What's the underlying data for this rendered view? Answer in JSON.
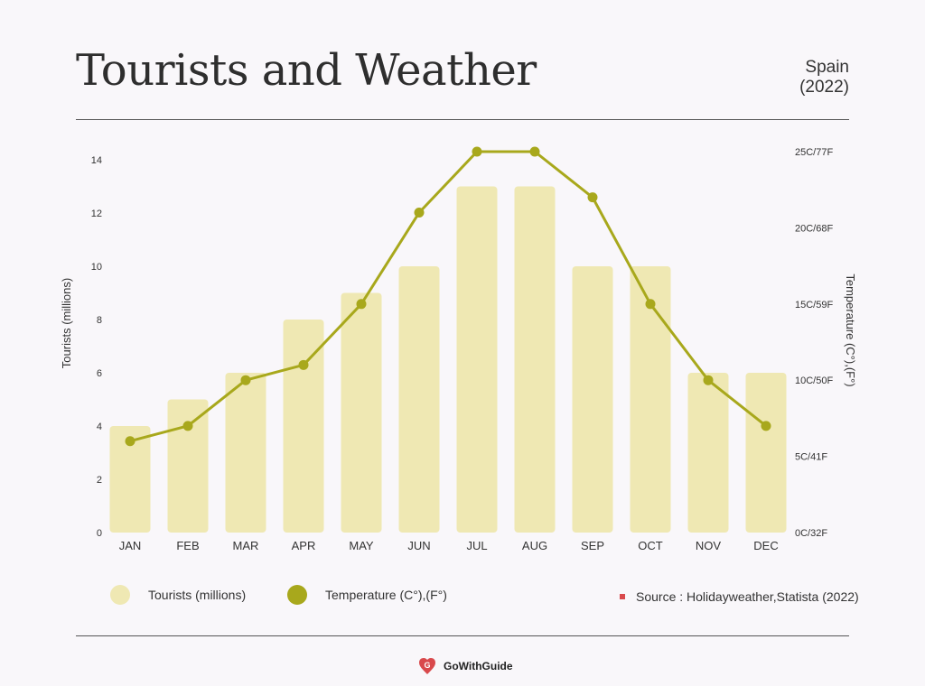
{
  "header": {
    "title": "Tourists and Weather",
    "subtitle_line1": "Spain",
    "subtitle_line2": "(2022)"
  },
  "chart_data": {
    "type": "bar+line",
    "categories": [
      "JAN",
      "FEB",
      "MAR",
      "APR",
      "MAY",
      "JUN",
      "JUL",
      "AUG",
      "SEP",
      "OCT",
      "NOV",
      "DEC"
    ],
    "series": [
      {
        "name": "Tourists (millions)",
        "type": "bar",
        "axis": "left",
        "color": "#efe8b3",
        "values": [
          4,
          5,
          6,
          8,
          9,
          10,
          13,
          13,
          10,
          10,
          6,
          6
        ]
      },
      {
        "name": "Temperature (C°),(F°)",
        "type": "line",
        "axis": "right",
        "color": "#a8a81c",
        "values": [
          6,
          7,
          10,
          11,
          15,
          21,
          25,
          25,
          22,
          15,
          10,
          7
        ]
      }
    ],
    "ylabel": "Tourists (millions)",
    "ylabel_right": "Temperature (C°),(F°)",
    "ylim": [
      0,
      14
    ],
    "yticks": [
      0,
      2,
      4,
      6,
      8,
      10,
      12,
      14
    ],
    "ylim_right": [
      0,
      25
    ],
    "yticks_right": [
      {
        "value": 0,
        "label": "0C/32F"
      },
      {
        "value": 5,
        "label": "5C/41F"
      },
      {
        "value": 10,
        "label": "10C/50F"
      },
      {
        "value": 15,
        "label": "15C/59F"
      },
      {
        "value": 20,
        "label": "20C/68F"
      },
      {
        "value": 25,
        "label": "25C/77F"
      }
    ],
    "grid": false,
    "legend_position": "bottom"
  },
  "legend": {
    "tourists": "Tourists (millions)",
    "temperature": "Temperature (C°),(F°)"
  },
  "source": "Source : Holidayweather,Statista (2022)",
  "brand": "GoWithGuide",
  "colors": {
    "bar": "#efe8b3",
    "line": "#a8a81c",
    "source_mark": "#d9494c",
    "background": "#f9f7fa"
  }
}
